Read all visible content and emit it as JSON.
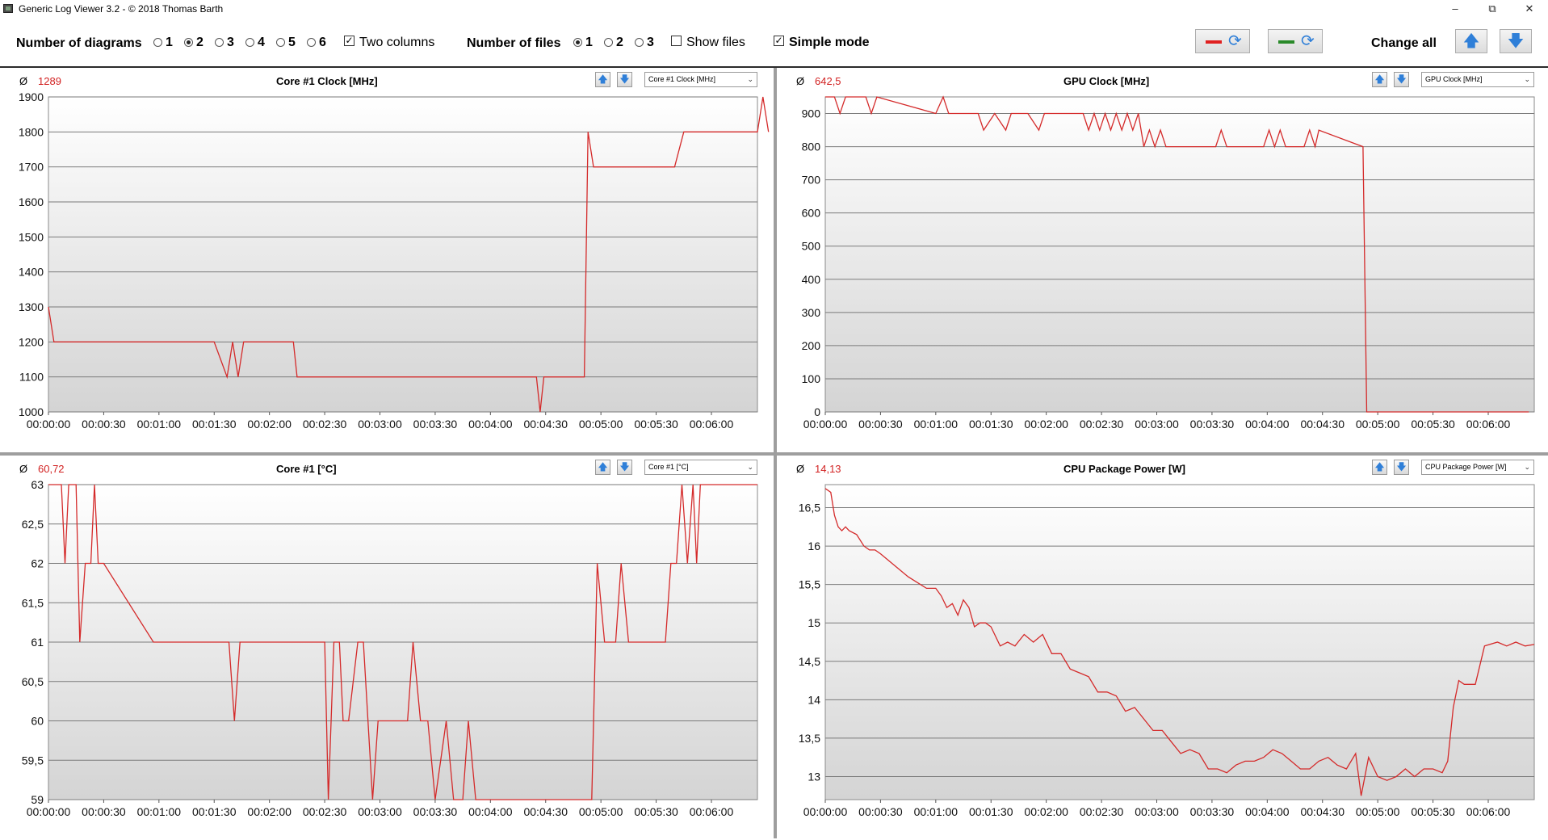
{
  "window": {
    "title": "Generic Log Viewer 3.2 - © 2018 Thomas Barth",
    "minimize": "–",
    "maximize": "⧉",
    "close": "✕"
  },
  "toolbar": {
    "num_diagrams_label": "Number of diagrams",
    "diagram_options": [
      "1",
      "2",
      "3",
      "4",
      "5",
      "6"
    ],
    "diagram_selected": "2",
    "two_columns_label": "Two columns",
    "two_columns_checked": true,
    "num_files_label": "Number of files",
    "file_options": [
      "1",
      "2",
      "3"
    ],
    "file_selected": "1",
    "show_files_label": "Show files",
    "show_files_checked": false,
    "simple_mode_label": "Simple mode",
    "simple_mode_checked": true,
    "change_all_label": "Change all",
    "color_red": "#e02020",
    "color_green": "#2a8a2a"
  },
  "panels": [
    {
      "avg_symbol": "Ø",
      "avg": "1289",
      "title": "Core #1 Clock [MHz]",
      "select": "Core #1 Clock [MHz]"
    },
    {
      "avg_symbol": "Ø",
      "avg": "642,5",
      "title": "GPU Clock [MHz]",
      "select": "GPU Clock [MHz]"
    },
    {
      "avg_symbol": "Ø",
      "avg": "60,72",
      "title": "Core #1 [°C]",
      "select": "Core #1 [°C]"
    },
    {
      "avg_symbol": "Ø",
      "avg": "14,13",
      "title": "CPU Package Power [W]",
      "select": "CPU Package Power [W]"
    }
  ],
  "chart_data": [
    {
      "type": "line",
      "title": "Core #1 Clock [MHz]",
      "line_color": "#d42a2a",
      "xlim": [
        0,
        385
      ],
      "ylim": [
        1000,
        1900
      ],
      "yticks": [
        1000,
        1100,
        1200,
        1300,
        1400,
        1500,
        1600,
        1700,
        1800,
        1900
      ],
      "ytick_labels": [
        "1000",
        "1100",
        "1200",
        "1300",
        "1400",
        "1500",
        "1600",
        "1700",
        "1800",
        "1900"
      ],
      "xticks": [
        0,
        30,
        60,
        90,
        120,
        150,
        180,
        210,
        240,
        270,
        300,
        330,
        360
      ],
      "xtick_labels": [
        "00:00:00",
        "00:00:30",
        "00:01:00",
        "00:01:30",
        "00:02:00",
        "00:02:30",
        "00:03:00",
        "00:03:30",
        "00:04:00",
        "00:04:30",
        "00:05:00",
        "00:05:30",
        "00:06:00"
      ],
      "grid": true,
      "x": [
        0,
        3,
        90,
        97,
        100,
        103,
        106,
        133,
        135,
        265,
        267,
        269,
        291,
        293,
        296,
        340,
        345,
        385,
        388,
        391
      ],
      "y": [
        1300,
        1200,
        1200,
        1100,
        1200,
        1100,
        1200,
        1200,
        1100,
        1100,
        1000,
        1100,
        1100,
        1800,
        1700,
        1700,
        1800,
        1800,
        1900,
        1800
      ]
    },
    {
      "type": "line",
      "title": "GPU Clock [MHz]",
      "line_color": "#d42a2a",
      "xlim": [
        0,
        385
      ],
      "ylim": [
        0,
        950
      ],
      "yticks": [
        0,
        100,
        200,
        300,
        400,
        500,
        600,
        700,
        800,
        900
      ],
      "ytick_labels": [
        "0",
        "100",
        "200",
        "300",
        "400",
        "500",
        "600",
        "700",
        "800",
        "900"
      ],
      "xticks": [
        0,
        30,
        60,
        90,
        120,
        150,
        180,
        210,
        240,
        270,
        300,
        330,
        360
      ],
      "xtick_labels": [
        "00:00:00",
        "00:00:30",
        "00:01:00",
        "00:01:30",
        "00:02:00",
        "00:02:30",
        "00:03:00",
        "00:03:30",
        "00:04:00",
        "00:04:30",
        "00:05:00",
        "00:05:30",
        "00:06:00"
      ],
      "grid": true,
      "x": [
        0,
        5,
        8,
        11,
        22,
        25,
        28,
        60,
        64,
        67,
        83,
        86,
        92,
        98,
        101,
        110,
        116,
        119,
        140,
        143,
        146,
        149,
        152,
        155,
        158,
        161,
        164,
        167,
        170,
        173,
        176,
        179,
        182,
        185,
        188,
        212,
        215,
        218,
        238,
        241,
        244,
        247,
        250,
        260,
        263,
        266,
        268,
        292,
        294,
        382
      ],
      "y": [
        950,
        950,
        900,
        950,
        950,
        900,
        950,
        900,
        950,
        900,
        900,
        850,
        900,
        850,
        900,
        900,
        850,
        900,
        900,
        850,
        900,
        850,
        900,
        850,
        900,
        850,
        900,
        850,
        900,
        800,
        850,
        800,
        850,
        800,
        800,
        800,
        850,
        800,
        800,
        850,
        800,
        850,
        800,
        800,
        850,
        800,
        850,
        800,
        0,
        0
      ]
    },
    {
      "type": "line",
      "title": "Core #1 [°C]",
      "line_color": "#d42a2a",
      "xlim": [
        0,
        385
      ],
      "ylim": [
        59,
        63
      ],
      "yticks": [
        59,
        59.5,
        60,
        60.5,
        61,
        61.5,
        62,
        62.5,
        63
      ],
      "ytick_labels": [
        "59",
        "59,5",
        "60",
        "60,5",
        "61",
        "61,5",
        "62",
        "62,5",
        "63"
      ],
      "xticks": [
        0,
        30,
        60,
        90,
        120,
        150,
        180,
        210,
        240,
        270,
        300,
        330,
        360
      ],
      "xtick_labels": [
        "00:00:00",
        "00:00:30",
        "00:01:00",
        "00:01:30",
        "00:02:00",
        "00:02:30",
        "00:03:00",
        "00:03:30",
        "00:04:00",
        "00:04:30",
        "00:05:00",
        "00:05:30",
        "00:06:00"
      ],
      "grid": true,
      "x": [
        0,
        7,
        9,
        11,
        15,
        17,
        20,
        23,
        25,
        27,
        30,
        57,
        98,
        101,
        104,
        150,
        152,
        155,
        158,
        160,
        163,
        168,
        171,
        176,
        179,
        195,
        198,
        202,
        206,
        210,
        216,
        220,
        225,
        228,
        232,
        295,
        298,
        302,
        308,
        311,
        315,
        335,
        338,
        341,
        344,
        347,
        350,
        352,
        354,
        385
      ],
      "y": [
        63,
        63,
        62,
        63,
        63,
        61,
        62,
        62,
        63,
        62,
        62,
        61,
        61,
        60,
        61,
        61,
        59,
        61,
        61,
        60,
        60,
        61,
        61,
        59,
        60,
        60,
        61,
        60,
        60,
        59,
        60,
        59,
        59,
        60,
        59,
        59,
        62,
        61,
        61,
        62,
        61,
        61,
        62,
        62,
        63,
        62,
        63,
        62,
        63,
        63
      ]
    },
    {
      "type": "line",
      "title": "CPU Package Power [W]",
      "line_color": "#d42a2a",
      "xlim": [
        0,
        385
      ],
      "ylim": [
        12.7,
        16.8
      ],
      "yticks": [
        13,
        13.5,
        14,
        14.5,
        15,
        15.5,
        16,
        16.5
      ],
      "ytick_labels": [
        "13",
        "13,5",
        "14",
        "14,5",
        "15",
        "15,5",
        "16",
        "16,5"
      ],
      "xticks": [
        0,
        30,
        60,
        90,
        120,
        150,
        180,
        210,
        240,
        270,
        300,
        330,
        360
      ],
      "xtick_labels": [
        "00:00:00",
        "00:00:30",
        "00:01:00",
        "00:01:30",
        "00:02:00",
        "00:02:30",
        "00:03:00",
        "00:03:30",
        "00:04:00",
        "00:04:30",
        "00:05:00",
        "00:05:30",
        "00:06:00"
      ],
      "grid": true,
      "x": [
        0,
        3,
        5,
        7,
        9,
        11,
        13,
        17,
        21,
        24,
        27,
        30,
        35,
        45,
        55,
        60,
        63,
        66,
        69,
        72,
        75,
        78,
        81,
        84,
        87,
        90,
        95,
        99,
        103,
        108,
        113,
        118,
        123,
        128,
        133,
        138,
        143,
        148,
        153,
        158,
        163,
        168,
        173,
        178,
        183,
        188,
        193,
        198,
        203,
        208,
        213,
        218,
        223,
        228,
        233,
        238,
        243,
        248,
        253,
        258,
        263,
        268,
        273,
        278,
        283,
        288,
        291,
        295,
        300,
        305,
        310,
        315,
        320,
        325,
        330,
        335,
        338,
        341,
        344,
        347,
        350,
        353,
        358,
        365,
        370,
        375,
        380,
        385
      ],
      "y": [
        16.75,
        16.7,
        16.4,
        16.25,
        16.2,
        16.25,
        16.2,
        16.15,
        16.0,
        15.95,
        15.95,
        15.9,
        15.8,
        15.6,
        15.45,
        15.45,
        15.35,
        15.2,
        15.25,
        15.1,
        15.3,
        15.2,
        14.95,
        15.0,
        15.0,
        14.95,
        14.7,
        14.75,
        14.7,
        14.85,
        14.75,
        14.85,
        14.6,
        14.6,
        14.4,
        14.35,
        14.3,
        14.1,
        14.1,
        14.05,
        13.85,
        13.9,
        13.75,
        13.6,
        13.6,
        13.45,
        13.3,
        13.35,
        13.3,
        13.1,
        13.1,
        13.05,
        13.15,
        13.2,
        13.2,
        13.25,
        13.35,
        13.3,
        13.2,
        13.1,
        13.1,
        13.2,
        13.25,
        13.15,
        13.1,
        13.3,
        12.75,
        13.25,
        13.0,
        12.95,
        13.0,
        13.1,
        13.0,
        13.1,
        13.1,
        13.05,
        13.2,
        13.9,
        14.25,
        14.2,
        14.2,
        14.2,
        14.7,
        14.75,
        14.7,
        14.75,
        14.7,
        14.72
      ]
    }
  ]
}
